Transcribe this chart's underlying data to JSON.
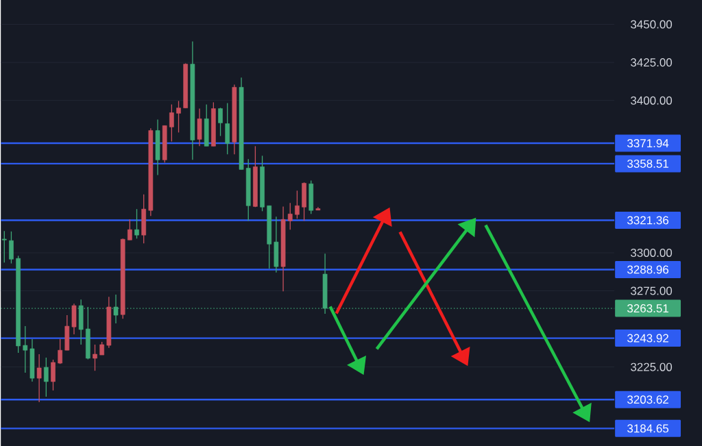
{
  "chart_data": {
    "type": "candlestick",
    "categories": [
      null,
      null,
      null,
      null,
      null,
      null,
      null,
      null,
      null,
      null,
      null,
      null,
      null,
      null,
      null,
      null,
      null,
      null,
      null,
      null,
      null,
      null,
      null,
      null,
      null,
      null,
      null,
      null,
      null,
      null,
      null,
      null,
      null,
      null,
      null,
      null,
      null,
      null,
      null,
      null,
      null,
      null,
      null,
      null,
      null,
      null,
      null,
      null,
      null,
      null,
      null,
      null,
      null,
      null,
      null,
      null,
      null,
      null,
      null,
      null,
      null,
      null,
      null,
      null,
      null,
      null,
      null,
      null,
      null,
      null,
      null,
      null,
      null,
      null,
      null,
      null,
      null,
      null,
      null,
      null,
      null,
      null,
      null,
      null,
      null,
      null,
      null,
      null
    ],
    "ohlc": [
      [
        3309,
        3314.3,
        3293.6,
        3308.4
      ],
      [
        3308,
        3314,
        3293,
        3295.8
      ],
      [
        3296.3,
        3298,
        3234.3,
        3238.8
      ],
      [
        3239.2,
        3251.8,
        3221.2,
        3236
      ],
      [
        3237,
        3243.3,
        3215.4,
        3217.6
      ],
      [
        3217.6,
        3233.4,
        3201.9,
        3224.4
      ],
      [
        3224.8,
        3231.1,
        3205.5,
        3215.4
      ],
      [
        3215.4,
        3229.8,
        3209.6,
        3228
      ],
      [
        3227.5,
        3243.4,
        3227,
        3236
      ],
      [
        3236,
        3259,
        3236,
        3251.8
      ],
      [
        3251.3,
        3266.6,
        3246.4,
        3265.3
      ],
      [
        3265.3,
        3269.3,
        3239.7,
        3249.6
      ],
      [
        3250,
        3264.4,
        3230,
        3230.7
      ],
      [
        3230.7,
        3239.7,
        3222.5,
        3233.4
      ],
      [
        3232.9,
        3241.5,
        3232.9,
        3239.7
      ],
      [
        3239.2,
        3271.1,
        3237.6,
        3264.4
      ],
      [
        3264.4,
        3272.5,
        3253.6,
        3259
      ],
      [
        3259.4,
        3309.3,
        3256.7,
        3308.9
      ],
      [
        3308.4,
        3321.9,
        3308.4,
        3315.2
      ],
      [
        3315.2,
        3328.7,
        3309.3,
        3311.6
      ],
      [
        3311.6,
        3338.3,
        3306.2,
        3328.7
      ],
      [
        3327.8,
        3381.7,
        3324.2,
        3380.3
      ],
      [
        3380.3,
        3387.5,
        3351.1,
        3361
      ],
      [
        3361,
        3383.5,
        3359.2,
        3383.5
      ],
      [
        3382.6,
        3397.4,
        3373.1,
        3392
      ],
      [
        3391.6,
        3399.7,
        3379,
        3395.1
      ],
      [
        3395.1,
        3424.4,
        3395,
        3423.9
      ],
      [
        3423.9,
        3438.8,
        3361,
        3374
      ],
      [
        3374.5,
        3394.7,
        3370,
        3388
      ],
      [
        3388,
        3397.4,
        3370,
        3370
      ],
      [
        3370,
        3398.8,
        3370,
        3394.7
      ],
      [
        3394.7,
        3395.2,
        3376.7,
        3385.3
      ],
      [
        3384.8,
        3398.3,
        3364.6,
        3371.8
      ],
      [
        3372.7,
        3410.4,
        3364.6,
        3408.7
      ],
      [
        3408.7,
        3415,
        3354.7,
        3354.7
      ],
      [
        3355.6,
        3361.5,
        3321,
        3330.9
      ],
      [
        3330.4,
        3370,
        3330,
        3356.5
      ],
      [
        3356.5,
        3363.7,
        3327.3,
        3330
      ],
      [
        3330.9,
        3330.9,
        3289.6,
        3305.7
      ],
      [
        3307.1,
        3323.7,
        3287,
        3290.9
      ],
      [
        3290.9,
        3330.4,
        3274.7,
        3321.9
      ],
      [
        3321,
        3332.7,
        3315.2,
        3325.5
      ],
      [
        3325.1,
        3340.8,
        3322.4,
        3330.9
      ],
      [
        3330,
        3346.2,
        3321,
        3345.7
      ],
      [
        3345.3,
        3347.5,
        3325.5,
        3327.8
      ],
      [
        3328,
        3330,
        3328,
        3329
      ],
      [
        3286,
        3299.4,
        3259.9,
        3263.5
      ],
      null,
      null,
      null,
      null,
      null,
      null,
      null,
      null,
      null,
      null,
      null,
      null,
      null,
      null,
      null,
      null,
      null,
      null,
      null,
      null,
      null,
      null,
      null,
      null,
      null,
      null,
      null,
      null,
      null,
      null,
      null,
      null,
      null,
      null,
      null,
      null,
      null,
      null,
      null,
      null,
      null
    ],
    "colors": [
      "#3fa877",
      "#3fa877",
      "#3fa877",
      "#3fa877",
      "#3fa877",
      "#c8505d",
      "#3fa877",
      "#c8505d",
      "#c8505d",
      "#c8505d",
      "#c8505d",
      "#3fa877",
      "#3fa877",
      "#c8505d",
      "#c8505d",
      "#c8505d",
      "#3fa877",
      "#c8505d",
      "#c8505d",
      "#3fa877",
      "#c8505d",
      "#c8505d",
      "#3fa877",
      "#c8505d",
      "#c8505d",
      "#c8505d",
      "#c8505d",
      "#3fa877",
      "#c8505d",
      "#3fa877",
      "#c8505d",
      "#3fa877",
      "#3fa877",
      "#c8505d",
      "#3fa877",
      "#3fa877",
      "#c8505d",
      "#3fa877",
      "#3fa877",
      "#3fa877",
      "#c8505d",
      "#c8505d",
      "#c8505d",
      "#c8505d",
      "#3fa877",
      "#c8505d",
      "#3fa877",
      null,
      null,
      null,
      null,
      null,
      null,
      null,
      null,
      null,
      null,
      null,
      null,
      null,
      null,
      null,
      null,
      null,
      null,
      null,
      null,
      null,
      null,
      null,
      null,
      null,
      null,
      null,
      null,
      null,
      null,
      null,
      null,
      null,
      null,
      null,
      null,
      null,
      null,
      null,
      null,
      null
    ],
    "ylim": [
      3173,
      3466
    ],
    "yticks": [
      {
        "value": 3225,
        "label": "3225.00"
      },
      {
        "value": 3275,
        "label": "3275.00"
      },
      {
        "value": 3300,
        "label": "3300.00"
      },
      {
        "value": 3400,
        "label": "3400.00"
      },
      {
        "value": 3425,
        "label": "3425.00"
      },
      {
        "value": 3450,
        "label": "3450.00"
      }
    ],
    "grid": "y",
    "tick_labels": "y",
    "ref_lines": [
      {
        "axis": "y",
        "value": 3371.94,
        "label": "3371.94",
        "color": "#2e5cf2",
        "line_style": "solid"
      },
      {
        "axis": "y",
        "value": 3358.51,
        "label": "3358.51",
        "color": "#2e5cf2",
        "line_style": "solid"
      },
      {
        "axis": "y",
        "value": 3321.36,
        "label": "3321.36",
        "color": "#2e5cf2",
        "line_style": "solid"
      },
      {
        "axis": "y",
        "value": 3288.96,
        "label": "3288.96",
        "color": "#2e5cf2",
        "line_style": "solid"
      },
      {
        "axis": "y",
        "value": 3263.51,
        "label": "3263.51",
        "color": "#3fa877",
        "line_style": "dotted"
      },
      {
        "axis": "y",
        "value": 3243.92,
        "label": "3243.92",
        "color": "#2e5cf2",
        "line_style": "solid"
      },
      {
        "axis": "y",
        "value": 3203.62,
        "label": "3203.62",
        "color": "#2e5cf2",
        "line_style": "solid"
      },
      {
        "axis": "y",
        "value": 3184.65,
        "label": "3184.65",
        "color": "#2e5cf2",
        "line_style": "solid"
      }
    ]
  }
}
